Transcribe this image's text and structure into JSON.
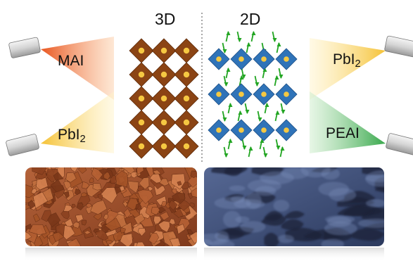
{
  "labels": {
    "panel_3d": "3D",
    "panel_2d": "2D",
    "left_top_source": "MAI",
    "left_bottom_source": {
      "base": "PbI",
      "sub": "2"
    },
    "right_top_source": {
      "base": "PbI",
      "sub": "2"
    },
    "right_bottom_source": "PEAI"
  },
  "lattice_3d": {
    "rows": 5,
    "columns": 3,
    "octahedron_color": "#8b4414",
    "center_atom_color": "#f5c842"
  },
  "lattice_2d": {
    "layers": 3,
    "octahedra_per_layer": 4,
    "octahedron_color": "#2f73b8",
    "center_atom_color": "#f5c842",
    "spacer_color": "#22a522"
  },
  "colors": {
    "mai_wedge": "#ec6b2d",
    "pbi2_wedge": "#f6c94a",
    "peai_wedge": "#49b05a",
    "divider": "#888888",
    "sem_3d": "#a0502e",
    "sem_2d": "#3c4d75"
  },
  "icons": [
    "evaporation-source-icon"
  ],
  "images": [
    "sem-3d-morphology",
    "sem-2d-morphology"
  ]
}
